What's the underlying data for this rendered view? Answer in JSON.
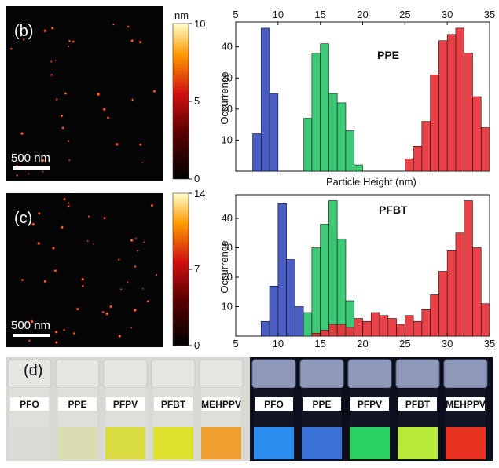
{
  "panels": {
    "b": {
      "label": "(b)",
      "scalebar": "500 nm",
      "colorbar": {
        "unit": "nm",
        "max": "10",
        "mid": "5",
        "min": "0"
      }
    },
    "c": {
      "label": "(c)",
      "scalebar": "500 nm",
      "colorbar": {
        "unit": "",
        "max": "14",
        "mid": "7",
        "min": "0"
      }
    },
    "d": {
      "label": "(d)",
      "ambient_vials": [
        "PFO",
        "PPE",
        "PFPV",
        "PFBT",
        "MEHPPV"
      ],
      "uv_vials": [
        "PFO",
        "PPE",
        "PFPV",
        "PFBT",
        "MEHPPV"
      ],
      "ambient_colors": [
        "#dcdcd6",
        "#d8dcb0",
        "#d8dc40",
        "#dce22e",
        "#f0a030"
      ],
      "uv_colors": [
        "#2a8ef0",
        "#3a72d8",
        "#2ad060",
        "#b8e83a",
        "#e83020"
      ]
    }
  },
  "chart_data": [
    {
      "type": "bar",
      "title": "PPE",
      "xlabel": "Particle Height (nm)",
      "ylabel": "Occurrence",
      "xlim": [
        5,
        35
      ],
      "ylim": [
        0,
        48
      ],
      "x_ticks": [
        "5",
        "10",
        "15",
        "20",
        "25",
        "30",
        "35"
      ],
      "y_ticks": [
        "10",
        "20",
        "30",
        "40"
      ],
      "x_axis_position": "top",
      "colors": {
        "blue": "#3a4fc0",
        "green": "#2ec46a",
        "red": "#e8323a"
      },
      "bin_width": 1,
      "series": [
        {
          "color": "blue",
          "x": [
            7,
            8,
            9
          ],
          "values": [
            12,
            46,
            25
          ]
        },
        {
          "color": "green",
          "x": [
            13,
            14,
            15,
            16,
            17,
            18,
            19
          ],
          "values": [
            17,
            38,
            41,
            25,
            22,
            13,
            2
          ]
        },
        {
          "color": "red",
          "x": [
            25,
            26,
            27,
            28,
            29,
            30,
            31,
            32,
            33,
            34
          ],
          "values": [
            4,
            8,
            16,
            31,
            42,
            44,
            46,
            38,
            24,
            14
          ]
        }
      ]
    },
    {
      "type": "bar",
      "title": "PFBT",
      "xlabel": "",
      "ylabel": "Occurrence",
      "xlim": [
        5,
        35
      ],
      "ylim": [
        0,
        48
      ],
      "x_ticks": [
        "5",
        "10",
        "15",
        "20",
        "25",
        "30",
        "35"
      ],
      "y_ticks": [
        "10",
        "20",
        "30",
        "40"
      ],
      "x_axis_position": "bottom",
      "colors": {
        "blue": "#3a4fc0",
        "green": "#2ec46a",
        "red": "#e8323a"
      },
      "bin_width": 1,
      "series": [
        {
          "color": "blue",
          "x": [
            8,
            9,
            10,
            11,
            12
          ],
          "values": [
            5,
            17,
            45,
            26,
            10
          ]
        },
        {
          "color": "green",
          "x": [
            13,
            14,
            15,
            16,
            17,
            18
          ],
          "values": [
            8,
            30,
            38,
            46,
            33,
            12
          ]
        },
        {
          "color": "red",
          "x": [
            14,
            15,
            16,
            17,
            18,
            19,
            20,
            21,
            22,
            23,
            24,
            25,
            26,
            27,
            28,
            29,
            30,
            31,
            32,
            33,
            34
          ],
          "values": [
            1,
            2,
            4,
            4,
            3,
            6,
            5,
            8,
            7,
            6,
            4,
            7,
            5,
            9,
            14,
            22,
            29,
            35,
            46,
            30,
            11
          ]
        }
      ]
    }
  ]
}
